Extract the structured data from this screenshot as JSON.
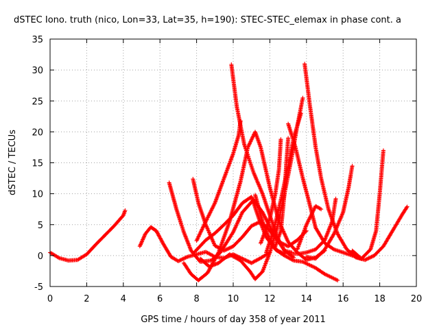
{
  "chart_data": {
    "type": "scatter",
    "title": "dSTEC Iono. truth (nico, Lon=33, Lat=35, h=190): STEC-STEC_elemax in phase cont. a",
    "xlabel": "GPS time / hours of day 358 of year 2011",
    "ylabel": "dSTEC  / TECUs",
    "xlim": [
      0,
      20
    ],
    "ylim": [
      -5,
      35
    ],
    "xticks": [
      "0",
      "2",
      "4",
      "6",
      "8",
      "10",
      "12",
      "14",
      "16",
      "18",
      "20"
    ],
    "yticks": [
      "-5",
      "0",
      "5",
      "10",
      "15",
      "20",
      "25",
      "30",
      "35"
    ],
    "grid": true,
    "marker": "+",
    "color": "#ff0000",
    "series": [
      {
        "points": [
          [
            0,
            0.5
          ],
          [
            0.5,
            -0.4
          ],
          [
            1,
            -0.8
          ],
          [
            1.5,
            -0.7
          ],
          [
            2,
            0.2
          ],
          [
            2.5,
            1.8
          ],
          [
            3,
            3.3
          ],
          [
            3.5,
            4.8
          ],
          [
            4,
            6.5
          ],
          [
            4.1,
            7.3
          ]
        ]
      },
      {
        "points": [
          [
            4.9,
            1.5
          ],
          [
            5.2,
            3.5
          ],
          [
            5.5,
            4.6
          ],
          [
            5.8,
            4.0
          ],
          [
            6.2,
            1.8
          ],
          [
            6.6,
            -0.2
          ],
          [
            7,
            -0.9
          ],
          [
            7.5,
            -0.2
          ],
          [
            8,
            0.2
          ],
          [
            8.5,
            0.6
          ],
          [
            9,
            -0.2
          ],
          [
            9.5,
            -0.4
          ],
          [
            10,
            0.2
          ],
          [
            10.5,
            -0.5
          ],
          [
            11,
            -1.2
          ],
          [
            11.5,
            -0.4
          ],
          [
            12,
            0.5
          ]
        ]
      },
      {
        "points": [
          [
            6.5,
            11.8
          ],
          [
            6.9,
            7.5
          ],
          [
            7.3,
            3.8
          ],
          [
            7.7,
            0.8
          ],
          [
            8.2,
            -1.0
          ],
          [
            8.8,
            -0.8
          ],
          [
            9.3,
            0.5
          ],
          [
            10,
            3.8
          ],
          [
            10.5,
            7.0
          ],
          [
            11.1,
            9.0
          ],
          [
            11.6,
            7.0
          ],
          [
            12.2,
            3.5
          ],
          [
            12.8,
            0.8
          ],
          [
            13.3,
            -0.3
          ]
        ]
      },
      {
        "points": [
          [
            7.3,
            -1.2
          ],
          [
            7.7,
            -3.0
          ],
          [
            8.1,
            -4.0
          ],
          [
            8.6,
            -2.8
          ],
          [
            9.2,
            0.5
          ],
          [
            9.8,
            5.5
          ],
          [
            10.4,
            12.0
          ],
          [
            10.8,
            17.5
          ],
          [
            11.2,
            20.0
          ],
          [
            11.5,
            17.5
          ],
          [
            12,
            11.0
          ],
          [
            12.5,
            5.5
          ],
          [
            13,
            2.2
          ],
          [
            13.5,
            0.5
          ],
          [
            14,
            -0.7
          ],
          [
            14.5,
            -0.3
          ],
          [
            15,
            0.8
          ]
        ]
      },
      {
        "points": [
          [
            7.8,
            12.4
          ],
          [
            8.1,
            8.5
          ],
          [
            8.5,
            5.0
          ],
          [
            9,
            1.6
          ],
          [
            9.5,
            0.8
          ],
          [
            10,
            1.5
          ],
          [
            10.5,
            3.0
          ],
          [
            11,
            4.8
          ],
          [
            11.5,
            5.5
          ],
          [
            12,
            4.0
          ],
          [
            12.5,
            2.2
          ],
          [
            13,
            1.5
          ],
          [
            13.5,
            2.5
          ],
          [
            14,
            4.0
          ]
        ]
      },
      {
        "points": [
          [
            7.9,
            0.6
          ],
          [
            8.5,
            2.5
          ],
          [
            9,
            3.6
          ],
          [
            9.5,
            5.0
          ],
          [
            10,
            6.5
          ],
          [
            10.5,
            8.5
          ],
          [
            11,
            9.5
          ],
          [
            11.4,
            6.0
          ],
          [
            11.8,
            3.0
          ],
          [
            12.3,
            1.0
          ],
          [
            12.8,
            0.0
          ],
          [
            13.3,
            -0.8
          ],
          [
            13.8,
            -1.0
          ],
          [
            14.5,
            -2.0
          ],
          [
            15,
            -3.0
          ],
          [
            15.7,
            -4.0
          ]
        ]
      },
      {
        "points": [
          [
            8,
            2.4
          ],
          [
            8.5,
            5.5
          ],
          [
            9,
            8.5
          ],
          [
            9.5,
            12.5
          ],
          [
            10,
            16.5
          ],
          [
            10.3,
            19.5
          ],
          [
            10.4,
            21.8
          ]
        ]
      },
      {
        "points": [
          [
            8.2,
            -0.5
          ],
          [
            8.7,
            -1.8
          ],
          [
            9.2,
            -1.2
          ],
          [
            9.8,
            0.2
          ],
          [
            10.4,
            -0.8
          ],
          [
            10.9,
            -2.5
          ],
          [
            11.2,
            -3.8
          ],
          [
            11.6,
            -2.6
          ],
          [
            12,
            0.5
          ],
          [
            12.4,
            4.5
          ],
          [
            12.8,
            10.0
          ],
          [
            13.2,
            16.0
          ],
          [
            13.5,
            21.0
          ],
          [
            13.8,
            25.5
          ]
        ]
      },
      {
        "points": [
          [
            9.9,
            30.9
          ],
          [
            10.2,
            24.0
          ],
          [
            10.6,
            18.0
          ],
          [
            11.1,
            13.5
          ],
          [
            11.6,
            10.0
          ],
          [
            12,
            6.5
          ],
          [
            12.4,
            3.0
          ],
          [
            12.8,
            0.8
          ],
          [
            13.2,
            0.5
          ]
        ]
      },
      {
        "points": [
          [
            11.2,
            9.8
          ],
          [
            11.6,
            5.5
          ],
          [
            12,
            2.5
          ],
          [
            12.4,
            0.8
          ],
          [
            12.8,
            0.3
          ]
        ]
      },
      {
        "points": [
          [
            11.5,
            2.0
          ],
          [
            12,
            6.0
          ],
          [
            12.3,
            10.0
          ],
          [
            12.5,
            14.0
          ],
          [
            12.6,
            18.8
          ]
        ]
      },
      {
        "points": [
          [
            11.8,
            0.5
          ],
          [
            12.2,
            4.0
          ],
          [
            12.6,
            9.0
          ],
          [
            13,
            14.5
          ],
          [
            13.3,
            19.0
          ],
          [
            13.5,
            21.0
          ],
          [
            13.7,
            23.0
          ]
        ]
      },
      {
        "points": [
          [
            12.3,
            1.5
          ],
          [
            12.6,
            4.0
          ],
          [
            12.8,
            10.0
          ],
          [
            12.9,
            15.0
          ],
          [
            13,
            19.0
          ]
        ]
      },
      {
        "points": [
          [
            13,
            21.3
          ],
          [
            13.4,
            17.5
          ],
          [
            13.8,
            12.5
          ],
          [
            14.2,
            8.0
          ],
          [
            14.5,
            4.5
          ],
          [
            15,
            2.0
          ],
          [
            15.5,
            1.0
          ],
          [
            16,
            0.5
          ],
          [
            16.5,
            0.0
          ],
          [
            17,
            -0.5
          ]
        ]
      },
      {
        "points": [
          [
            13.2,
            0.3
          ],
          [
            13.6,
            0.3
          ],
          [
            14,
            0.5
          ],
          [
            14.5,
            1.0
          ],
          [
            15,
            2.5
          ],
          [
            15.4,
            5.5
          ],
          [
            15.6,
            9.2
          ]
        ]
      },
      {
        "points": [
          [
            13.5,
            1.0
          ],
          [
            14,
            5.0
          ],
          [
            14.5,
            8.0
          ],
          [
            14.8,
            7.5
          ]
        ]
      },
      {
        "points": [
          [
            13.9,
            31.0
          ],
          [
            14.2,
            24.0
          ],
          [
            14.5,
            17.5
          ],
          [
            14.8,
            12.5
          ],
          [
            15.2,
            7.5
          ],
          [
            15.7,
            3.5
          ],
          [
            16.2,
            1.0
          ],
          [
            16.7,
            -0.3
          ],
          [
            17.2,
            -0.7
          ],
          [
            17.7,
            0.0
          ],
          [
            18.2,
            1.5
          ],
          [
            18.7,
            4.0
          ],
          [
            19.2,
            6.5
          ],
          [
            19.5,
            7.9
          ]
        ]
      },
      {
        "points": [
          [
            14,
            -0.2
          ],
          [
            14.5,
            -0.5
          ],
          [
            15,
            1.0
          ],
          [
            15.5,
            3.5
          ],
          [
            16,
            7.0
          ],
          [
            16.3,
            11.0
          ],
          [
            16.5,
            14.5
          ]
        ]
      },
      {
        "points": [
          [
            16.5,
            0.8
          ],
          [
            17,
            -0.5
          ],
          [
            17.5,
            1.0
          ],
          [
            17.8,
            4.0
          ],
          [
            18,
            10.0
          ],
          [
            18.2,
            17.0
          ]
        ]
      }
    ]
  }
}
